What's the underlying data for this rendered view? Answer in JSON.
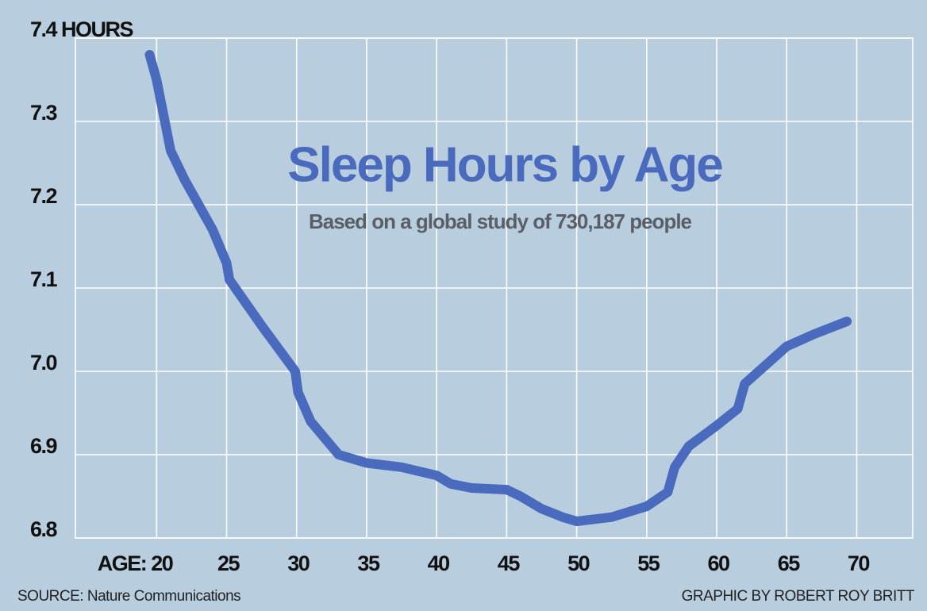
{
  "chart_data": {
    "type": "line",
    "title": "Sleep Hours by Age",
    "subtitle": "Based on a global study of 730,187 people",
    "source": "SOURCE: Nature Communications",
    "credit": "GRAPHIC BY ROBERT ROY BRITT",
    "x": [
      19.5,
      20,
      21,
      22,
      23,
      24,
      25,
      25.2,
      27.5,
      29.9,
      30.1,
      31,
      32,
      33,
      34,
      35,
      37.5,
      40,
      41,
      42.5,
      45,
      46,
      47.5,
      49,
      50,
      52.5,
      55,
      56.5,
      57,
      58,
      60,
      61.5,
      62,
      63,
      64,
      65,
      67,
      69.3
    ],
    "values": [
      7.38,
      7.35,
      7.265,
      7.23,
      7.2,
      7.17,
      7.13,
      7.11,
      7.055,
      7.0,
      6.975,
      6.94,
      6.92,
      6.9,
      6.895,
      6.89,
      6.885,
      6.875,
      6.865,
      6.86,
      6.858,
      6.85,
      6.835,
      6.825,
      6.82,
      6.825,
      6.838,
      6.855,
      6.885,
      6.91,
      6.935,
      6.955,
      6.985,
      7.0,
      7.015,
      7.03,
      7.045,
      7.06
    ],
    "color": "#4a6abd",
    "xlim": [
      14.2,
      74
    ],
    "ylim": [
      6.8,
      7.4
    ],
    "xticks": [
      {
        "value": 20,
        "label": "AGE: 20"
      },
      25,
      30,
      35,
      40,
      45,
      50,
      55,
      60,
      65,
      70
    ],
    "yticks": [
      6.8,
      6.9,
      {
        "value": 7,
        "label": "7.0"
      },
      7.1,
      7.2,
      7.3,
      {
        "value": 7.4,
        "label": "7.4 HOURS"
      }
    ],
    "grid": true
  }
}
